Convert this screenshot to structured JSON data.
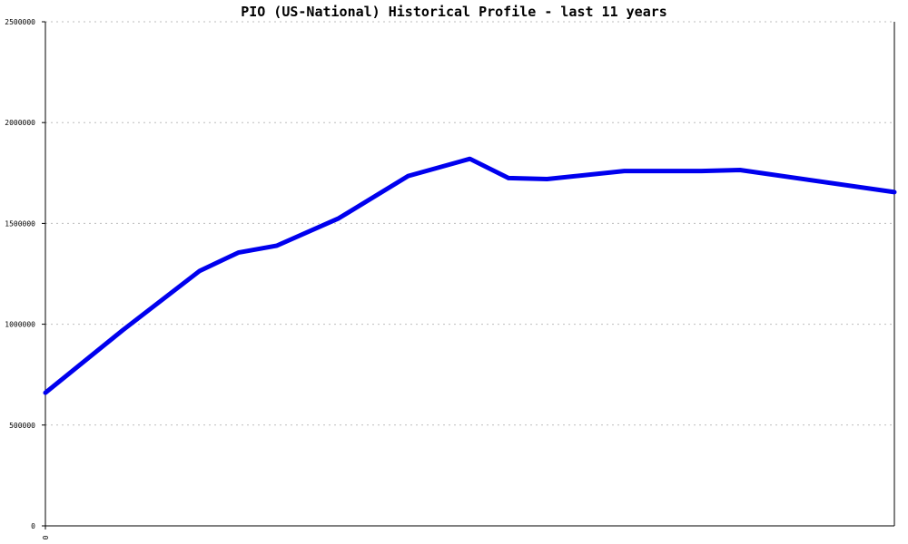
{
  "chart_data": {
    "type": "line",
    "title": "PIO (US-National) Historical Profile - last 11 years",
    "xlabel": "",
    "ylabel": "",
    "ylim": [
      0,
      2500000
    ],
    "xlim": [
      0,
      11
    ],
    "y_ticks": [
      0,
      500000,
      1000000,
      1500000,
      2000000,
      2500000
    ],
    "y_tick_labels": [
      "0",
      "500000",
      "1000000",
      "1500000",
      "2000000",
      "2500000"
    ],
    "x_tick_labels": [
      "0"
    ],
    "grid": true,
    "legend": "none",
    "series": [
      {
        "color": "#0000ee",
        "x": [
          0,
          1,
          2,
          2.5,
          3,
          3.8,
          4.7,
          5.5,
          6,
          6.5,
          7.5,
          8.5,
          9,
          11
        ],
        "values": [
          660000,
          970000,
          1265000,
          1355000,
          1390000,
          1525000,
          1735000,
          1820000,
          1725000,
          1720000,
          1760000,
          1760000,
          1765000,
          1655000
        ]
      }
    ]
  }
}
